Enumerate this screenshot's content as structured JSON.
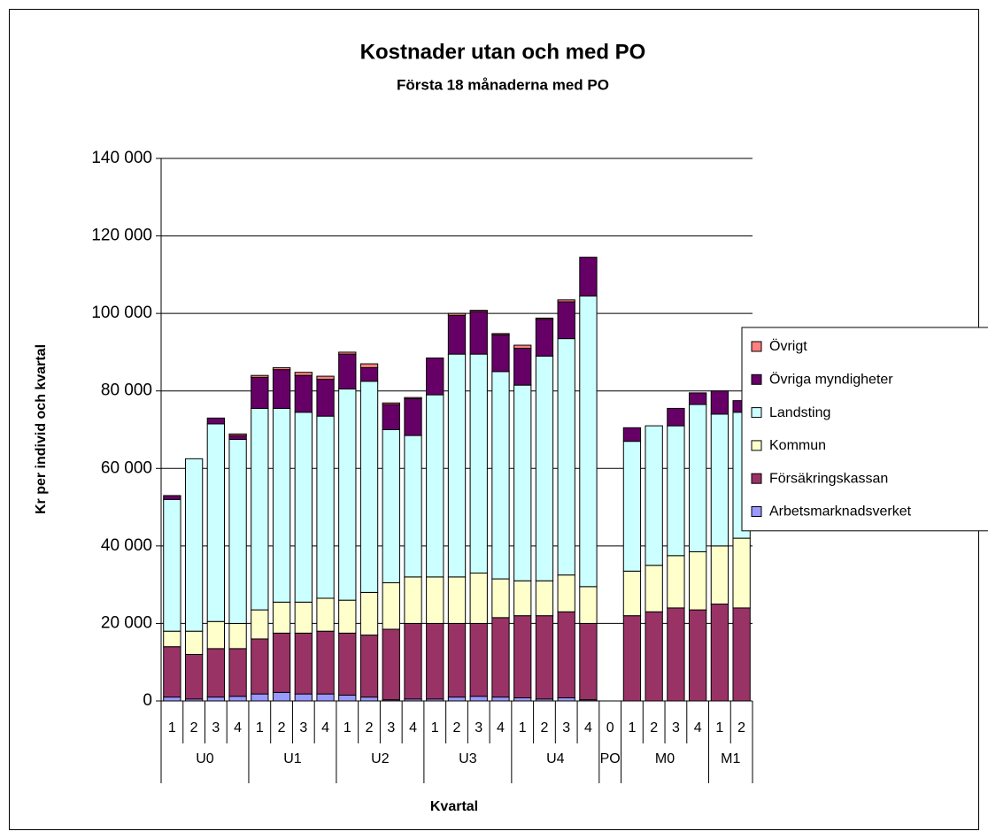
{
  "chart_data": {
    "type": "stacked_bar",
    "title": "Kostnader utan och med PO",
    "subtitle": "Första 18 månaderna med PO",
    "x_label": "Kvartal",
    "y_label": "Kr per individ och kvartal",
    "groups": [
      {
        "label": "U0",
        "categories": [
          "1",
          "2",
          "3",
          "4"
        ]
      },
      {
        "label": "U1",
        "categories": [
          "1",
          "2",
          "3",
          "4"
        ]
      },
      {
        "label": "U2",
        "categories": [
          "1",
          "2",
          "3",
          "4"
        ]
      },
      {
        "label": "U3",
        "categories": [
          "1",
          "2",
          "3",
          "4"
        ]
      },
      {
        "label": "U4",
        "categories": [
          "1",
          "2",
          "3",
          "4"
        ]
      },
      {
        "label": "PO",
        "categories": [
          "0"
        ]
      },
      {
        "label": "M0",
        "categories": [
          "1",
          "2",
          "3",
          "4"
        ]
      },
      {
        "label": "M1",
        "categories": [
          "1",
          "2"
        ]
      }
    ],
    "series": [
      {
        "name": "Arbetsmarknadsverket",
        "color": "#9999ff",
        "values": [
          1000,
          500,
          1000,
          1200,
          1800,
          2200,
          1800,
          1800,
          1500,
          1000,
          300,
          500,
          500,
          1000,
          1200,
          1000,
          800,
          500,
          800,
          300,
          null,
          0,
          0,
          0,
          0,
          0,
          0
        ]
      },
      {
        "name": "Försäkringskassan",
        "color": "#993366",
        "values": [
          13000,
          11500,
          12500,
          12300,
          14200,
          15300,
          15700,
          16200,
          16000,
          16000,
          18200,
          19500,
          19500,
          19000,
          18800,
          20500,
          21200,
          21500,
          22200,
          19700,
          null,
          22000,
          23000,
          24000,
          23500,
          25000,
          24000
        ]
      },
      {
        "name": "Kommun",
        "color": "#ffffcc",
        "values": [
          4000,
          6000,
          7000,
          6500,
          7500,
          8000,
          8000,
          8500,
          8500,
          11000,
          12000,
          12000,
          12000,
          12000,
          13000,
          10000,
          9000,
          9000,
          9500,
          9500,
          null,
          11500,
          12000,
          13500,
          15000,
          15000,
          18000
        ]
      },
      {
        "name": "Landsting",
        "color": "#ccffff",
        "values": [
          34000,
          44500,
          51000,
          47500,
          52000,
          50000,
          49000,
          47000,
          54500,
          54500,
          39500,
          36500,
          47000,
          57500,
          56500,
          53500,
          50500,
          58000,
          61000,
          75000,
          null,
          33500,
          36000,
          33500,
          38000,
          34000,
          32500
        ]
      },
      {
        "name": "Övriga myndigheter",
        "color": "#660066",
        "values": [
          1000,
          0,
          1500,
          1000,
          8000,
          10000,
          9500,
          9500,
          9000,
          3500,
          6500,
          9500,
          9500,
          10000,
          11000,
          9500,
          9500,
          9500,
          9500,
          10000,
          null,
          3500,
          0,
          4500,
          3000,
          6000,
          3000
        ]
      },
      {
        "name": "Övrigt",
        "color": "#ff8080",
        "values": [
          0,
          0,
          0,
          400,
          500,
          500,
          800,
          800,
          500,
          1000,
          400,
          300,
          0,
          500,
          300,
          300,
          800,
          300,
          500,
          0,
          null,
          0,
          0,
          0,
          0,
          0,
          0
        ]
      }
    ],
    "ylim": [
      0,
      140000
    ],
    "yticks": [
      0,
      {
        "value": 20000,
        "label": "20 000"
      },
      {
        "value": 40000,
        "label": "40 000"
      },
      {
        "value": 60000,
        "label": "60 000"
      },
      {
        "value": 80000,
        "label": "80 000"
      },
      {
        "value": 100000,
        "label": "100 000"
      },
      {
        "value": 120000,
        "label": "120 000"
      },
      {
        "value": 140000,
        "label": "140 000"
      }
    ],
    "grid": true,
    "legend": "right"
  }
}
